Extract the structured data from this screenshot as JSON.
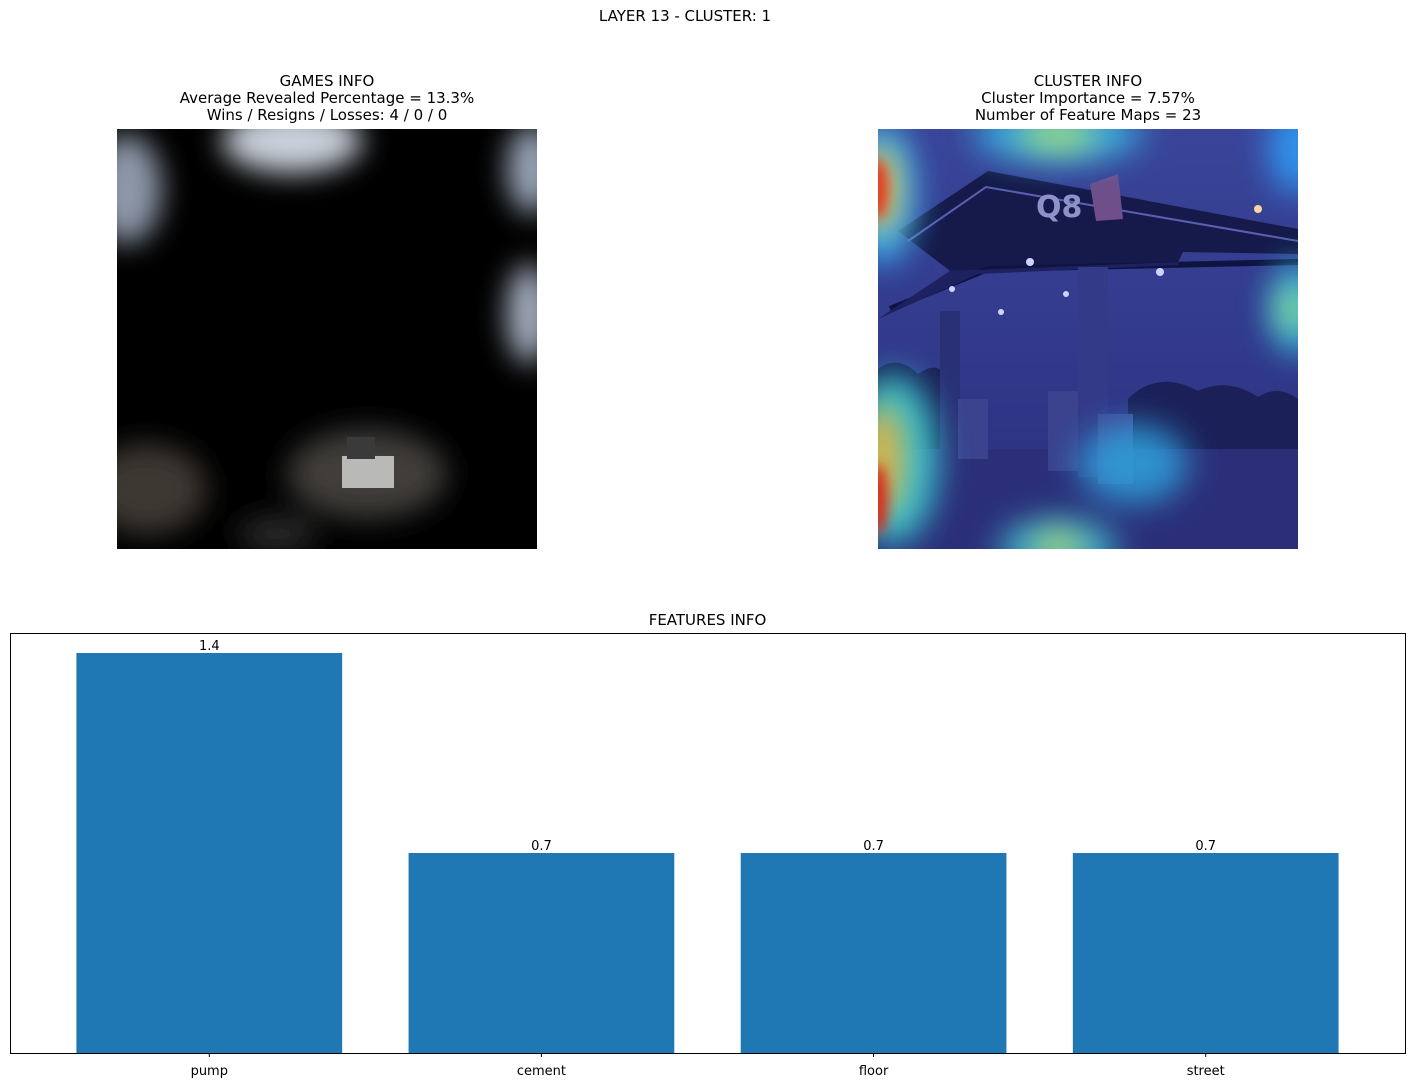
{
  "suptitle": "LAYER 13 - CLUSTER: 1",
  "games_info": {
    "title": "GAMES INFO",
    "line1": "Average Revealed Percentage = 13.3%",
    "line2": "Wins / Resigns / Losses: 4 / 0 / 0"
  },
  "cluster_info": {
    "title": "CLUSTER INFO",
    "line1": "Cluster Importance = 7.57%",
    "line2": "Number of Feature Maps = 23"
  },
  "colors": {
    "bar": "#1f77b4",
    "mask": "#000000",
    "heatmap_base": "#2a2f86"
  },
  "chart_data": {
    "type": "bar",
    "title": "FEATURES INFO",
    "categories": [
      "pump",
      "cement",
      "floor",
      "street"
    ],
    "values": [
      1.4,
      0.7,
      0.7,
      0.7
    ],
    "data_labels": [
      "1.4",
      "0.7",
      "0.7",
      "0.7"
    ],
    "ylim": [
      0,
      1.47
    ],
    "xlabel": "",
    "ylabel": "",
    "grid": false,
    "legend": "none"
  }
}
